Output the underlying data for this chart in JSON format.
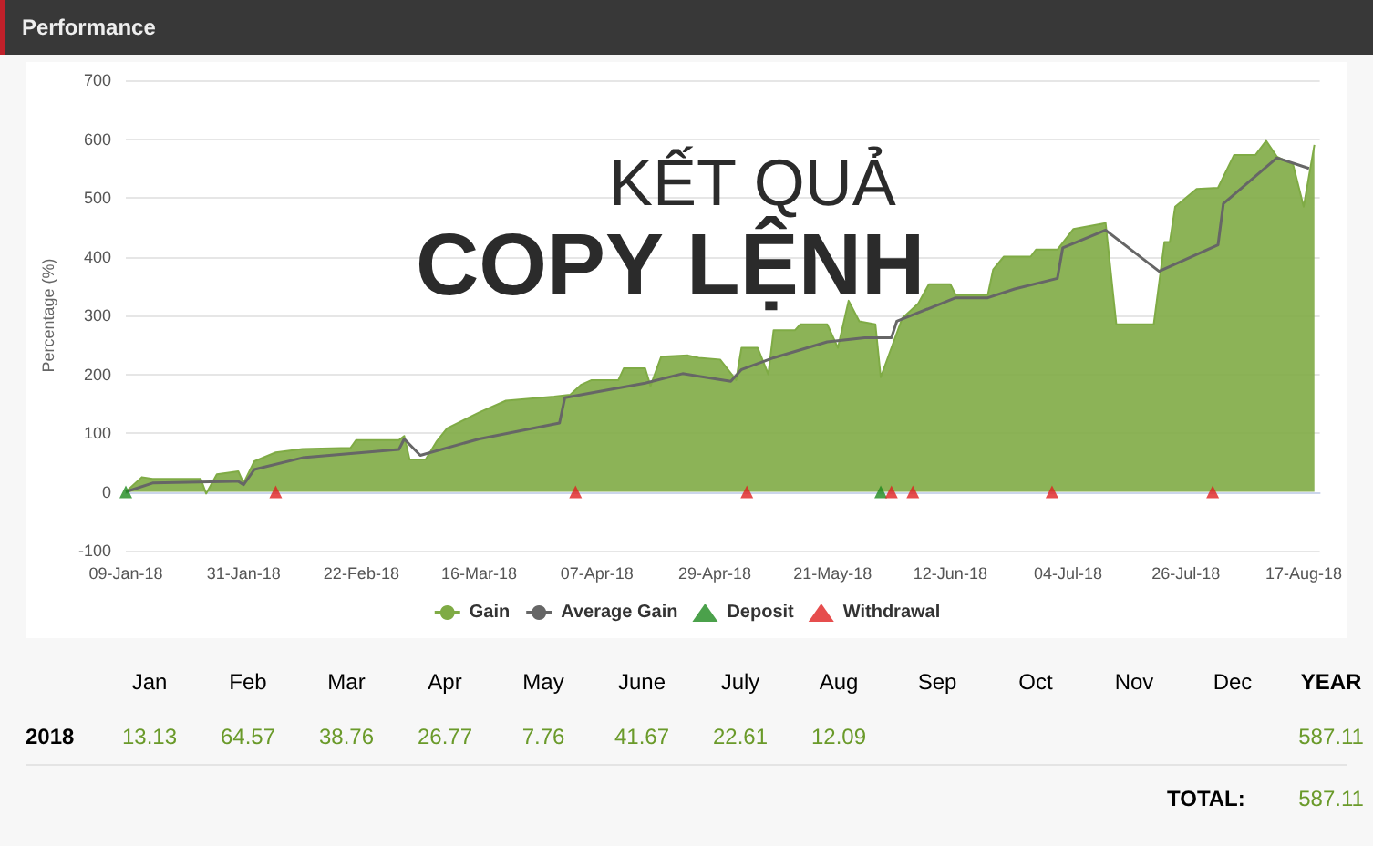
{
  "chart_data": [
    {
      "type": "area",
      "title": "Performance",
      "ylabel": "Percentage (%)",
      "annotations": [
        "KẾT QUẢ",
        "COPY LỆNH"
      ],
      "xlim": [
        "2018-01-09",
        "2018-08-20"
      ],
      "xticks": [
        {
          "value": "2018-01-09",
          "label": "09-Jan-18"
        },
        {
          "value": "2018-01-31",
          "label": "31-Jan-18"
        },
        {
          "value": "2018-02-22",
          "label": "22-Feb-18"
        },
        {
          "value": "2018-03-16",
          "label": "16-Mar-18"
        },
        {
          "value": "2018-04-07",
          "label": "07-Apr-18"
        },
        {
          "value": "2018-04-29",
          "label": "29-Apr-18"
        },
        {
          "value": "2018-05-21",
          "label": "21-May-18"
        },
        {
          "value": "2018-06-12",
          "label": "12-Jun-18"
        },
        {
          "value": "2018-07-04",
          "label": "04-Jul-18"
        },
        {
          "value": "2018-07-26",
          "label": "26-Jul-18"
        },
        {
          "value": "2018-08-17",
          "label": "17-Aug-18"
        }
      ],
      "ylim": [
        -100,
        700
      ],
      "yticks": [
        -100,
        0,
        100,
        200,
        300,
        400,
        500,
        600,
        700
      ],
      "grid": "y",
      "legend": "bottom",
      "series": [
        {
          "name": "Gain",
          "type": "area",
          "color": "#7fab45",
          "x": [
            "2018-01-09",
            "2018-01-12",
            "2018-01-14",
            "2018-01-23",
            "2018-01-24",
            "2018-01-26",
            "2018-01-30",
            "2018-01-31",
            "2018-02-02",
            "2018-02-06",
            "2018-02-11",
            "2018-02-20",
            "2018-02-21",
            "2018-03-01",
            "2018-03-02",
            "2018-03-03",
            "2018-03-06",
            "2018-03-08",
            "2018-03-10",
            "2018-03-16",
            "2018-03-21",
            "2018-03-30",
            "2018-04-02",
            "2018-04-04",
            "2018-04-06",
            "2018-04-11",
            "2018-04-12",
            "2018-04-16",
            "2018-04-17",
            "2018-04-19",
            "2018-04-24",
            "2018-04-26",
            "2018-04-30",
            "2018-05-03",
            "2018-05-04",
            "2018-05-07",
            "2018-05-09",
            "2018-05-10",
            "2018-05-14",
            "2018-05-15",
            "2018-05-20",
            "2018-05-22",
            "2018-05-24",
            "2018-05-26",
            "2018-05-29",
            "2018-05-30",
            "2018-06-01",
            "2018-06-03",
            "2018-06-06",
            "2018-06-08",
            "2018-06-12",
            "2018-06-13",
            "2018-06-19",
            "2018-06-20",
            "2018-06-22",
            "2018-06-27",
            "2018-06-28",
            "2018-07-02",
            "2018-07-05",
            "2018-07-11",
            "2018-07-13",
            "2018-07-20",
            "2018-07-22",
            "2018-07-23",
            "2018-07-24",
            "2018-07-28",
            "2018-08-01",
            "2018-08-04",
            "2018-08-08",
            "2018-08-10",
            "2018-08-12",
            "2018-08-15",
            "2018-08-17",
            "2018-08-19"
          ],
          "values": [
            0,
            25,
            22,
            22,
            -3,
            30,
            35,
            15,
            52,
            67,
            73,
            75,
            88,
            88,
            95,
            55,
            55,
            85,
            108,
            135,
            155,
            162,
            165,
            182,
            190,
            190,
            210,
            210,
            180,
            230,
            232,
            228,
            225,
            190,
            245,
            245,
            200,
            275,
            275,
            285,
            285,
            245,
            325,
            290,
            285,
            195,
            245,
            295,
            320,
            353,
            353,
            335,
            335,
            378,
            400,
            400,
            412,
            412,
            447,
            457,
            285,
            285,
            425,
            425,
            485,
            515,
            517,
            573,
            573,
            597,
            570,
            557,
            485,
            590
          ]
        },
        {
          "name": "Average Gain",
          "type": "line",
          "color": "#666666",
          "marker": "none",
          "x": [
            "2018-01-09",
            "2018-01-14",
            "2018-01-30",
            "2018-01-31",
            "2018-02-02",
            "2018-02-11",
            "2018-03-01",
            "2018-03-02",
            "2018-03-05",
            "2018-03-16",
            "2018-03-31",
            "2018-04-01",
            "2018-04-16",
            "2018-04-23",
            "2018-05-02",
            "2018-05-04",
            "2018-05-10",
            "2018-05-20",
            "2018-05-27",
            "2018-06-01",
            "2018-06-02",
            "2018-06-13",
            "2018-06-19",
            "2018-06-24",
            "2018-07-02",
            "2018-07-03",
            "2018-07-11",
            "2018-07-21",
            "2018-08-01",
            "2018-08-02",
            "2018-08-12",
            "2018-08-18"
          ],
          "values": [
            0,
            15,
            18,
            12,
            38,
            58,
            72,
            90,
            62,
            90,
            117,
            160,
            185,
            201,
            188,
            208,
            228,
            255,
            262,
            262,
            290,
            330,
            330,
            345,
            363,
            415,
            445,
            375,
            420,
            490,
            568,
            550
          ]
        },
        {
          "name": "Deposit",
          "type": "scatter",
          "color": "#1e8a1e",
          "marker": "triangle",
          "x": [
            "2018-01-09",
            "2018-05-30"
          ],
          "values": [
            0,
            0
          ]
        },
        {
          "name": "Withdrawal",
          "type": "scatter",
          "color": "#e02020",
          "marker": "triangle",
          "x": [
            "2018-02-06",
            "2018-04-03",
            "2018-05-05",
            "2018-06-01",
            "2018-06-05",
            "2018-07-01",
            "2018-07-31"
          ],
          "values": [
            0,
            0,
            0,
            0,
            0,
            0,
            0
          ]
        }
      ]
    },
    {
      "type": "other",
      "categories": [
        "Jan",
        "Feb",
        "Mar",
        "Apr",
        "May",
        "June",
        "July",
        "Aug",
        "Sep",
        "Oct",
        "Nov",
        "Dec",
        "YEAR"
      ],
      "y_categories": [
        "2018"
      ],
      "values": [
        13.13,
        64.57,
        38.76,
        26.77,
        7.76,
        41.67,
        22.61,
        12.09,
        null,
        null,
        null,
        null,
        587.11
      ],
      "data_labels": true,
      "annotations": [
        "TOTAL:",
        "587.11"
      ]
    }
  ]
}
